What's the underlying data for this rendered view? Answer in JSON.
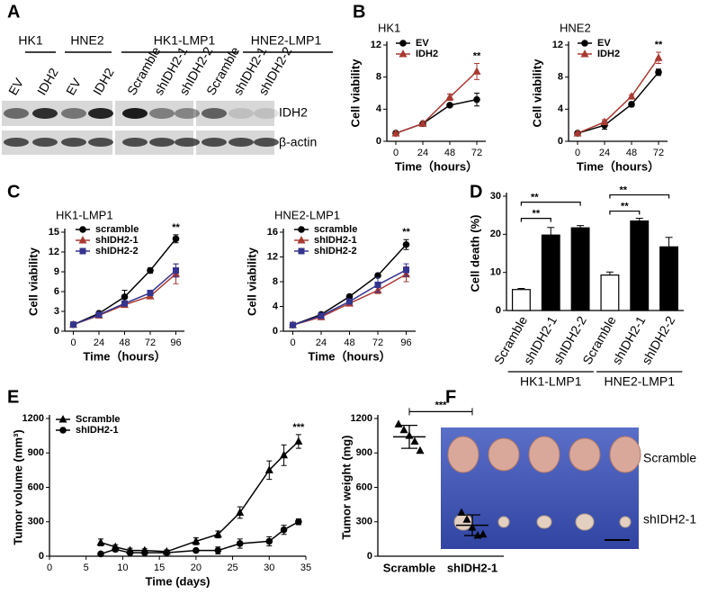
{
  "panels": [
    "A",
    "B",
    "C",
    "D",
    "E",
    "F"
  ],
  "blot": {
    "groups": [
      "HK1",
      "HNE2",
      "HK1-LMP1",
      "HNE2-LMP1"
    ],
    "lanes": [
      "EV",
      "IDH2",
      "EV",
      "IDH2",
      "Scramble",
      "shIDH2-1",
      "shIDH2-2",
      "Scramble",
      "shIDH2-1",
      "shIDH2-2"
    ],
    "bands": [
      "IDH2",
      "β-actin"
    ]
  },
  "photo": {
    "rows": [
      "Scramble",
      "shIDH2-1"
    ]
  },
  "chart_data": [
    {
      "type": "line",
      "title": "HK1",
      "xlabel": "Time（hours）",
      "ylabel": "Cell viability",
      "x": [
        0,
        24,
        48,
        72
      ],
      "xlim": [
        -8,
        80
      ],
      "xticks": [
        0,
        24,
        48,
        72
      ],
      "ylim": [
        0,
        12
      ],
      "yticks": [
        0,
        4,
        8,
        12
      ],
      "legend": "upper left",
      "series": [
        {
          "name": "EV",
          "color": "#000000",
          "marker": "circle",
          "values": [
            1,
            2.2,
            4.5,
            5.2
          ],
          "errors": [
            0.1,
            0.2,
            0.2,
            0.8
          ]
        },
        {
          "name": "IDH2",
          "color": "#a83a32",
          "marker": "triangle",
          "values": [
            1,
            2.2,
            5.5,
            8.7
          ],
          "errors": [
            0.1,
            0.2,
            0.4,
            1.0
          ]
        }
      ],
      "annotations": [
        "**"
      ]
    },
    {
      "type": "line",
      "title": "HNE2",
      "xlabel": "Time（hours）",
      "ylabel": "Cell viability",
      "x": [
        0,
        24,
        48,
        72
      ],
      "xlim": [
        -8,
        80
      ],
      "xticks": [
        0,
        24,
        48,
        72
      ],
      "ylim": [
        0,
        12
      ],
      "yticks": [
        0,
        4,
        8,
        12
      ],
      "legend": "upper left",
      "series": [
        {
          "name": "EV",
          "color": "#000000",
          "marker": "circle",
          "values": [
            1,
            2.0,
            4.6,
            8.6
          ],
          "errors": [
            0.1,
            0.5,
            0.3,
            0.4
          ]
        },
        {
          "name": "IDH2",
          "color": "#a83a32",
          "marker": "triangle",
          "values": [
            1,
            2.4,
            5.6,
            10.4
          ],
          "errors": [
            0.1,
            0.3,
            0.2,
            0.7
          ]
        }
      ],
      "annotations": [
        "**"
      ]
    },
    {
      "type": "line",
      "title": "HK1-LMP1",
      "xlabel": "Time（hours）",
      "ylabel": "Cell viability",
      "x": [
        0,
        24,
        48,
        72,
        96
      ],
      "xlim": [
        -8,
        104
      ],
      "xticks": [
        0,
        24,
        48,
        72,
        96
      ],
      "ylim": [
        0,
        15
      ],
      "yticks": [
        0,
        3,
        6,
        9,
        12,
        15
      ],
      "legend": "upper left",
      "series": [
        {
          "name": "scramble",
          "color": "#000000",
          "marker": "circle",
          "values": [
            1,
            2.7,
            5.2,
            9.2,
            14
          ],
          "errors": [
            0.1,
            0.2,
            1.0,
            0.4,
            0.6
          ]
        },
        {
          "name": "shIDH2-1",
          "color": "#a83a32",
          "marker": "triangle",
          "values": [
            1,
            2.4,
            4.0,
            5.3,
            8.7
          ],
          "errors": [
            0.1,
            0.2,
            0.3,
            0.3,
            1.5
          ]
        },
        {
          "name": "shIDH2-2",
          "color": "#34348f",
          "marker": "square",
          "values": [
            1,
            2.5,
            4.2,
            5.8,
            9.2
          ],
          "errors": [
            0.1,
            0.2,
            0.2,
            0.3,
            1.0
          ]
        }
      ],
      "annotations": [
        "**"
      ]
    },
    {
      "type": "line",
      "title": "HNE2-LMP1",
      "xlabel": "Time（hours）",
      "ylabel": "Cell viability",
      "x": [
        0,
        24,
        48,
        72,
        96
      ],
      "xlim": [
        -8,
        104
      ],
      "xticks": [
        0,
        24,
        48,
        72,
        96
      ],
      "ylim": [
        0,
        16
      ],
      "yticks": [
        0,
        4,
        8,
        12,
        16
      ],
      "legend": "upper left",
      "series": [
        {
          "name": "scramble",
          "color": "#000000",
          "marker": "circle",
          "values": [
            1,
            2.7,
            5.6,
            9,
            14
          ],
          "errors": [
            0.1,
            0.2,
            0.3,
            0.3,
            0.8
          ]
        },
        {
          "name": "shIDH2-1",
          "color": "#a83a32",
          "marker": "triangle",
          "values": [
            1,
            2.3,
            4.5,
            6.6,
            9.2
          ],
          "errors": [
            0.1,
            0.2,
            0.3,
            0.5,
            1.2
          ]
        },
        {
          "name": "shIDH2-2",
          "color": "#34348f",
          "marker": "square",
          "values": [
            1,
            2.5,
            4.8,
            7.5,
            9.9
          ],
          "errors": [
            0.1,
            0.2,
            0.3,
            1.2,
            1.0
          ]
        }
      ],
      "annotations": [
        "**"
      ]
    },
    {
      "type": "bar",
      "ylabel": "Cell death (%)",
      "categories": [
        "Scramble",
        "shIDH2-1",
        "shIDH2-2",
        "Scramble",
        "shIDH2-1",
        "shIDH2-2"
      ],
      "groups": [
        "HK1-LMP1",
        "HNE2-LMP1"
      ],
      "values": [
        5.5,
        19.8,
        21.7,
        9.3,
        23.5,
        16.7
      ],
      "errors": [
        0.3,
        2.0,
        0.6,
        0.8,
        0.7,
        2.5
      ],
      "colors": [
        "#ffffff",
        "#000000",
        "#000000",
        "#ffffff",
        "#000000",
        "#000000"
      ],
      "ylim": [
        0,
        30
      ],
      "yticks": [
        0,
        10,
        20,
        30
      ],
      "annotations": [
        "**",
        "**",
        "**",
        "**"
      ]
    },
    {
      "type": "line",
      "xlabel": "Time (days)",
      "ylabel": "Tumor volume (mm³)",
      "x": [
        7,
        9,
        11,
        13,
        16,
        20,
        23,
        26,
        30,
        32,
        34
      ],
      "xlim": [
        0,
        35
      ],
      "xticks": [
        0,
        5,
        10,
        15,
        20,
        25,
        30,
        35
      ],
      "ylim": [
        0,
        1200
      ],
      "yticks": [
        0,
        300,
        600,
        900,
        1200
      ],
      "legend": "upper left",
      "series": [
        {
          "name": "Scramble",
          "color": "#000000",
          "marker": "triangle",
          "values": [
            120,
            80,
            50,
            50,
            40,
            130,
            190,
            380,
            750,
            880,
            1000
          ],
          "errors": [
            30,
            20,
            20,
            15,
            15,
            30,
            30,
            50,
            80,
            90,
            60
          ]
        },
        {
          "name": "shIDH2-1",
          "color": "#000000",
          "marker": "circle",
          "values": [
            20,
            60,
            30,
            30,
            30,
            50,
            50,
            110,
            130,
            230,
            300
          ],
          "errors": [
            10,
            20,
            15,
            15,
            10,
            15,
            30,
            40,
            40,
            40,
            25
          ]
        }
      ],
      "annotations": [
        "***"
      ]
    },
    {
      "type": "dot",
      "ylabel": "Tumor weight (mg)",
      "categories": [
        "Scramble",
        "shIDH2-1"
      ],
      "values": [
        [
          1150,
          1100,
          1050,
          1000,
          920
        ],
        [
          380,
          320,
          250,
          180,
          190
        ]
      ],
      "means": [
        1040,
        270
      ],
      "errors": [
        100,
        90
      ],
      "ylim": [
        0,
        1200
      ],
      "yticks": [
        0,
        300,
        600,
        900,
        1200
      ],
      "annotations": [
        "***"
      ]
    }
  ]
}
